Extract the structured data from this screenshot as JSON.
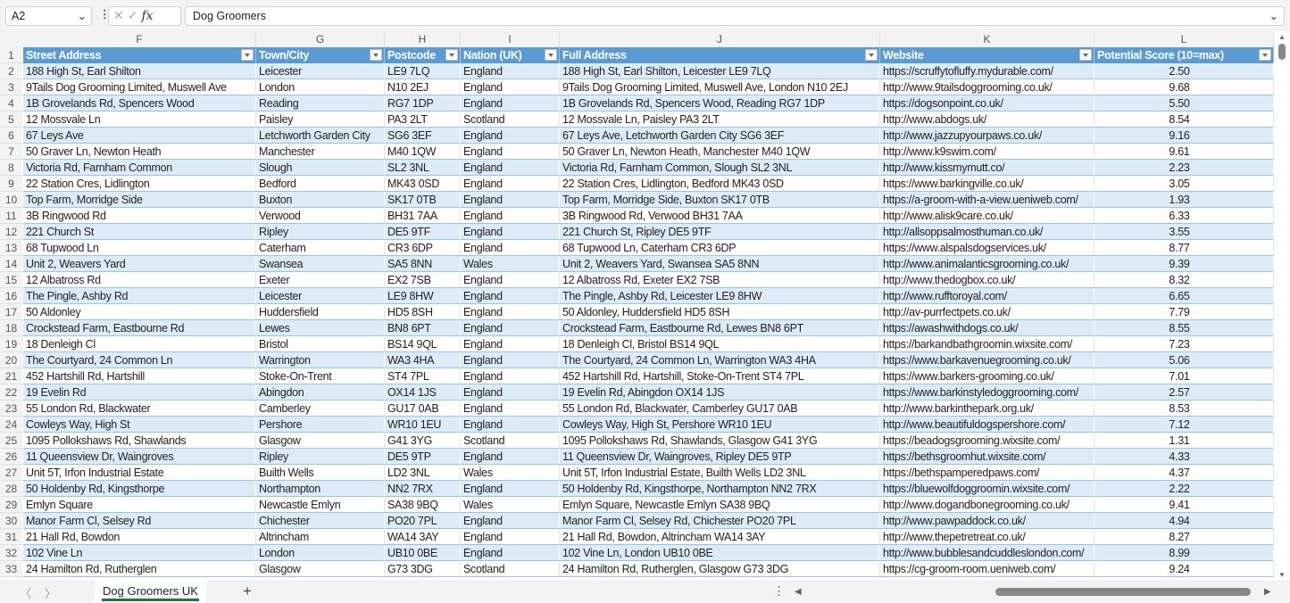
{
  "formula_bar": {
    "name_box": "A2",
    "formula": "Dog Groomers",
    "fx_label": "fx"
  },
  "columns": [
    "F",
    "G",
    "H",
    "I",
    "J",
    "K",
    "L"
  ],
  "headers": [
    "Street Address",
    "Town/City",
    "Postcode",
    "Nation (UK)",
    "Full Address",
    "Website",
    "Potential Score (10=max)"
  ],
  "rows": [
    [
      "188 High St, Earl Shilton",
      "Leicester",
      "LE9 7LQ",
      "England",
      "188 High St, Earl Shilton, Leicester LE9 7LQ",
      "https://scruffytofluffy.mydurable.com/",
      "2.50"
    ],
    [
      "9Tails Dog Grooming Limited, Muswell Ave",
      "London",
      "N10 2EJ",
      "England",
      "9Tails Dog Grooming Limited, Muswell Ave, London N10 2EJ",
      "http://www.9tailsdoggrooming.co.uk/",
      "9.68"
    ],
    [
      "1B Grovelands Rd, Spencers Wood",
      "Reading",
      "RG7 1DP",
      "England",
      "1B Grovelands Rd, Spencers Wood, Reading RG7 1DP",
      "https://dogsonpoint.co.uk/",
      "5.50"
    ],
    [
      "12 Mossvale Ln",
      "Paisley",
      "PA3 2LT",
      "Scotland",
      "12 Mossvale Ln, Paisley PA3 2LT",
      "http://www.abdogs.uk/",
      "8.54"
    ],
    [
      "67 Leys Ave",
      "Letchworth Garden City",
      "SG6 3EF",
      "England",
      "67 Leys Ave, Letchworth Garden City SG6 3EF",
      "http://www.jazzupyourpaws.co.uk/",
      "9.16"
    ],
    [
      "50 Graver Ln, Newton Heath",
      "Manchester",
      "M40 1QW",
      "England",
      "50 Graver Ln, Newton Heath, Manchester M40 1QW",
      "http://www.k9swim.com/",
      "9.61"
    ],
    [
      "Victoria Rd, Farnham Common",
      "Slough",
      "SL2 3NL",
      "England",
      "Victoria Rd, Farnham Common, Slough SL2 3NL",
      "http://www.kissmymutt.co/",
      "2.23"
    ],
    [
      "22 Station Cres, Lidlington",
      "Bedford",
      "MK43 0SD",
      "England",
      "22 Station Cres, Lidlington, Bedford MK43 0SD",
      "https://www.barkingville.co.uk/",
      "3.05"
    ],
    [
      "Top Farm, Morridge Side",
      "Buxton",
      "SK17 0TB",
      "England",
      "Top Farm, Morridge Side, Buxton SK17 0TB",
      "https://a-groom-with-a-view.ueniweb.com/",
      "1.93"
    ],
    [
      "3B Ringwood Rd",
      "Verwood",
      "BH31 7AA",
      "England",
      "3B Ringwood Rd, Verwood BH31 7AA",
      "http://www.alisk9care.co.uk/",
      "6.33"
    ],
    [
      "221 Church St",
      "Ripley",
      "DE5 9TF",
      "England",
      "221 Church St, Ripley DE5 9TF",
      "http://allsoppsalmosthuman.co.uk/",
      "3.55"
    ],
    [
      "68 Tupwood Ln",
      "Caterham",
      "CR3 6DP",
      "England",
      "68 Tupwood Ln, Caterham CR3 6DP",
      "https://www.alspalsdogservices.uk/",
      "8.77"
    ],
    [
      "Unit 2, Weavers Yard",
      "Swansea",
      "SA5 8NN",
      "Wales",
      "Unit 2, Weavers Yard, Swansea SA5 8NN",
      "http://www.animalanticsgrooming.co.uk/",
      "9.39"
    ],
    [
      "12 Albatross Rd",
      "Exeter",
      "EX2 7SB",
      "England",
      "12 Albatross Rd, Exeter EX2 7SB",
      "http://www.thedogbox.co.uk/",
      "8.32"
    ],
    [
      "The Pingle, Ashby Rd",
      "Leicester",
      "LE9 8HW",
      "England",
      "The Pingle, Ashby Rd, Leicester LE9 8HW",
      "http://www.rufftoroyal.com/",
      "6.65"
    ],
    [
      "50 Aldonley",
      "Huddersfield",
      "HD5 8SH",
      "England",
      "50 Aldonley, Huddersfield HD5 8SH",
      "http://av-purrfectpets.co.uk/",
      "7.79"
    ],
    [
      "Crockstead Farm, Eastbourne Rd",
      "Lewes",
      "BN8 6PT",
      "England",
      "Crockstead Farm, Eastbourne Rd, Lewes BN8 6PT",
      "https://awashwithdogs.co.uk/",
      "8.55"
    ],
    [
      "18 Denleigh Cl",
      "Bristol",
      "BS14 9QL",
      "England",
      "18 Denleigh Cl, Bristol BS14 9QL",
      "https://barkandbathgroomin.wixsite.com/",
      "7.23"
    ],
    [
      "The Courtyard, 24 Common Ln",
      "Warrington",
      "WA3 4HA",
      "England",
      "The Courtyard, 24 Common Ln, Warrington WA3 4HA",
      "https://www.barkavenuegrooming.co.uk/",
      "5.06"
    ],
    [
      "452 Hartshill Rd, Hartshill",
      "Stoke-On-Trent",
      "ST4 7PL",
      "England",
      "452 Hartshill Rd, Hartshill, Stoke-On-Trent ST4 7PL",
      "https://www.barkers-grooming.co.uk/",
      "7.01"
    ],
    [
      "19 Evelin Rd",
      "Abingdon",
      "OX14 1JS",
      "England",
      "19 Evelin Rd, Abingdon OX14 1JS",
      "https://www.barkinstyledoggrooming.com/",
      "2.57"
    ],
    [
      "55 London Rd, Blackwater",
      "Camberley",
      "GU17 0AB",
      "England",
      "55 London Rd, Blackwater, Camberley GU17 0AB",
      "http://www.barkinthepark.org.uk/",
      "8.53"
    ],
    [
      "Cowleys Way, High St",
      "Pershore",
      "WR10 1EU",
      "England",
      "Cowleys Way, High St, Pershore WR10 1EU",
      "http://www.beautifuldogspershore.com/",
      "7.12"
    ],
    [
      "1095 Pollokshaws Rd, Shawlands",
      "Glasgow",
      "G41 3YG",
      "Scotland",
      "1095 Pollokshaws Rd, Shawlands, Glasgow G41 3YG",
      "https://beadogsgrooming.wixsite.com/",
      "1.31"
    ],
    [
      "11 Queensview Dr, Waingroves",
      "Ripley",
      "DE5 9TP",
      "England",
      "11 Queensview Dr, Waingroves, Ripley DE5 9TP",
      "https://bethsgroomhut.wixsite.com/",
      "4.33"
    ],
    [
      "Unit 5T, Irfon Industrial Estate",
      "Builth Wells",
      "LD2 3NL",
      "Wales",
      "Unit 5T, Irfon Industrial Estate, Builth Wells LD2 3NL",
      "https://bethspamperedpaws.com/",
      "4.37"
    ],
    [
      "50 Holdenby Rd, Kingsthorpe",
      "Northampton",
      "NN2 7RX",
      "England",
      "50 Holdenby Rd, Kingsthorpe, Northampton NN2 7RX",
      "https://bluewolfdoggroomin.wixsite.com/",
      "2.22"
    ],
    [
      "Emlyn Square",
      "Newcastle Emlyn",
      "SA38 9BQ",
      "Wales",
      "Emlyn Square, Newcastle Emlyn SA38 9BQ",
      "http://www.dogandbonegrooming.co.uk/",
      "9.41"
    ],
    [
      "Manor Farm Cl, Selsey Rd",
      "Chichester",
      "PO20 7PL",
      "England",
      "Manor Farm Cl, Selsey Rd, Chichester PO20 7PL",
      "http://www.pawpaddock.co.uk/",
      "4.94"
    ],
    [
      "21 Hall Rd, Bowdon",
      "Altrincham",
      "WA14 3AY",
      "England",
      "21 Hall Rd, Bowdon, Altrincham WA14 3AY",
      "http://www.thepetretreat.co.uk/",
      "8.27"
    ],
    [
      "102 Vine Ln",
      "London",
      "UB10 0BE",
      "England",
      "102 Vine Ln, London UB10 0BE",
      "http://www.bubblesandcuddleslondon.com/",
      "8.99"
    ],
    [
      "24 Hamilton Rd, Rutherglen",
      "Glasgow",
      "G73 3DG",
      "Scotland",
      "24 Hamilton Rd, Rutherglen, Glasgow G73 3DG",
      "https://cg-groom-room.ueniweb.com/",
      "9.24"
    ]
  ],
  "sheet_tabs": [
    "Dog Groomers UK"
  ],
  "colors": {
    "header": "#5B9BD5",
    "band": "#DDEBF7",
    "active_tab": "#217346"
  }
}
